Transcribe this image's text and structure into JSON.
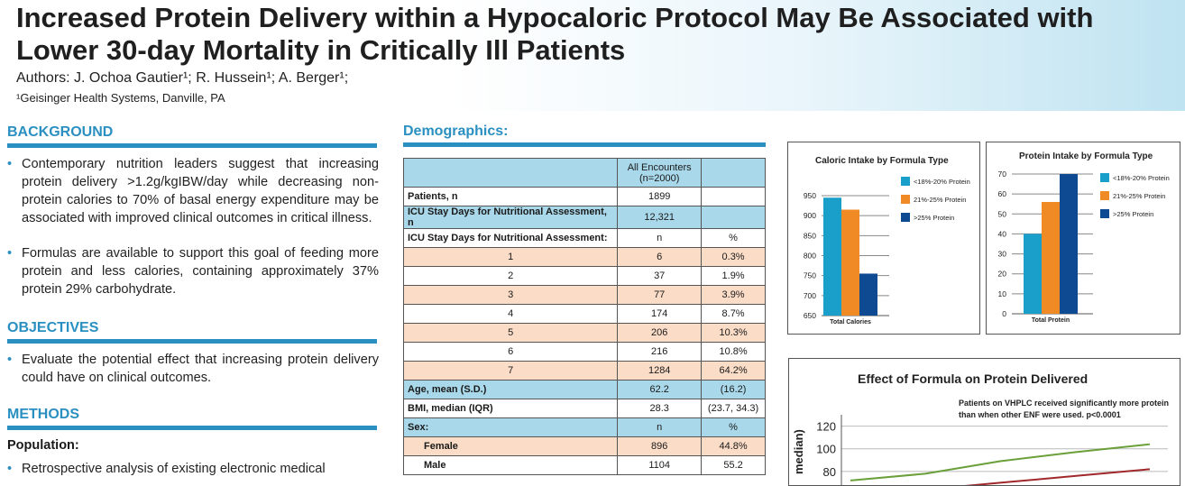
{
  "header": {
    "title": "Increased Protein Delivery within a Hypocaloric Protocol May Be Associated with Lower 30-day Mortality in Critically Ill Patients",
    "authors": "Authors: J. Ochoa Gautier¹; R. Hussein¹; A. Berger¹;",
    "affiliation": "¹Geisinger Health Systems, Danville, PA"
  },
  "background": {
    "heading": "BACKGROUND",
    "bullets": [
      "Contemporary nutrition leaders suggest that increasing protein delivery >1.2g/kgIBW/day while decreasing non-protein calories to 70% of basal energy expenditure may be associated with improved clinical outcomes in critical illness.",
      "Formulas are available to support this goal of feeding more protein and less calories, containing approximately 37% protein 29% carbohydrate."
    ]
  },
  "objectives": {
    "heading": "OBJECTIVES",
    "bullets": [
      "Evaluate the potential effect that increasing protein delivery could have on clinical outcomes."
    ]
  },
  "methods": {
    "heading": "METHODS",
    "population_label": "Population:",
    "bullets": [
      "Retrospective analysis of existing electronic medical"
    ]
  },
  "demographics": {
    "heading": "Demographics:",
    "col_header": "All Encounters (n=2000)",
    "rows": [
      {
        "label": "Patients, n",
        "v1": "1899",
        "v2": "",
        "style": "white",
        "bold": true,
        "indent": false
      },
      {
        "label": "ICU Stay Days for Nutritional Assessment, n",
        "v1": "12,321",
        "v2": "",
        "style": "blue",
        "bold": true,
        "indent": false
      },
      {
        "label": "ICU Stay Days for Nutritional Assessment:",
        "v1": "n",
        "v2": "%",
        "style": "white",
        "bold": true,
        "indent": false
      },
      {
        "label": "1",
        "v1": "6",
        "v2": "0.3%",
        "style": "peach",
        "bold": false,
        "center": true
      },
      {
        "label": "2",
        "v1": "37",
        "v2": "1.9%",
        "style": "white",
        "bold": false,
        "center": true
      },
      {
        "label": "3",
        "v1": "77",
        "v2": "3.9%",
        "style": "peach",
        "bold": false,
        "center": true
      },
      {
        "label": "4",
        "v1": "174",
        "v2": "8.7%",
        "style": "white",
        "bold": false,
        "center": true
      },
      {
        "label": "5",
        "v1": "206",
        "v2": "10.3%",
        "style": "peach",
        "bold": false,
        "center": true
      },
      {
        "label": "6",
        "v1": "216",
        "v2": "10.8%",
        "style": "white",
        "bold": false,
        "center": true
      },
      {
        "label": "7",
        "v1": "1284",
        "v2": "64.2%",
        "style": "peach",
        "bold": false,
        "center": true
      },
      {
        "label": "Age, mean (S.D.)",
        "v1": "62.2",
        "v2": "(16.2)",
        "style": "blue",
        "bold": true,
        "indent": false
      },
      {
        "label": "BMI, median (IQR)",
        "v1": "28.3",
        "v2": "(23.7, 34.3)",
        "style": "white",
        "bold": true,
        "indent": false
      },
      {
        "label": "Sex:",
        "v1": "n",
        "v2": "%",
        "style": "blue",
        "bold": true,
        "indent": false
      },
      {
        "label": "Female",
        "v1": "896",
        "v2": "44.8%",
        "style": "peach",
        "bold": true,
        "indent": true
      },
      {
        "label": "Male",
        "v1": "1104",
        "v2": "55.2",
        "style": "white",
        "bold": true,
        "indent": true
      }
    ]
  },
  "chart_data": [
    {
      "type": "bar",
      "title": "Caloric Intake by Formula Type",
      "categories": [
        "Total Calories"
      ],
      "series": [
        {
          "name": "<18%-20% Protein",
          "values": [
            945
          ],
          "color": "#1a9fcb"
        },
        {
          "name": "21%-25% Protein",
          "values": [
            915
          ],
          "color": "#f08a24"
        },
        {
          "name": ">25% Protein",
          "values": [
            755
          ],
          "color": "#0d4a92"
        }
      ],
      "ylim": [
        650,
        950
      ],
      "yticks": [
        650,
        700,
        750,
        800,
        850,
        900,
        950
      ],
      "grid": true,
      "legend": "right"
    },
    {
      "type": "bar",
      "title": "Protein Intake by Formula Type",
      "categories": [
        "Total Protein"
      ],
      "series": [
        {
          "name": "<18%-20% Protein",
          "values": [
            40
          ],
          "color": "#1a9fcb"
        },
        {
          "name": "21%-25% Protein",
          "values": [
            56
          ],
          "color": "#f08a24"
        },
        {
          "name": ">25% Protein",
          "values": [
            70
          ],
          "color": "#0d4a92"
        }
      ],
      "ylim": [
        0,
        70
      ],
      "yticks": [
        0,
        10,
        20,
        30,
        40,
        50,
        60,
        70
      ],
      "grid": true,
      "legend": "right"
    },
    {
      "type": "line",
      "title": "Effect of Formula on Protein Delivered",
      "annotation": "Patients on VHPLC received significantly more protein than when other ENF were used. p<0.0001",
      "ylabel": "median)",
      "yticks": [
        80,
        100,
        120
      ],
      "ylim": [
        60,
        130
      ],
      "x": [
        1,
        2,
        3,
        4,
        5
      ],
      "series": [
        {
          "values": [
            72,
            78,
            89,
            97,
            104
          ],
          "color": "#6a9f3a"
        },
        {
          "values": [
            60,
            64,
            70,
            76,
            82
          ],
          "color": "#a0282a"
        }
      ]
    }
  ]
}
